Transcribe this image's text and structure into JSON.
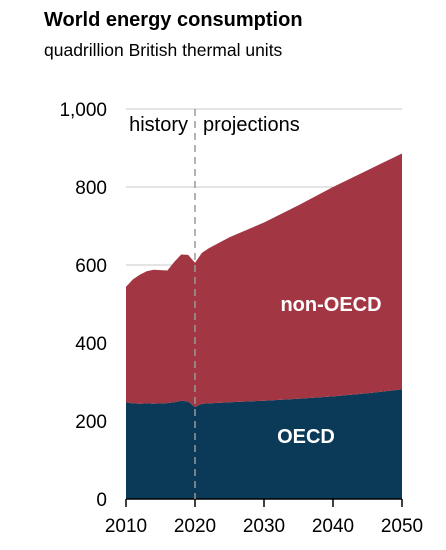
{
  "chart_data": {
    "type": "area",
    "title": "World energy consumption",
    "subtitle": "quadrillion British thermal units",
    "xlabel": "",
    "ylabel": "",
    "xlim": [
      2010,
      2050
    ],
    "ylim": [
      0,
      1000
    ],
    "x_ticks": [
      "2010",
      "2020",
      "2030",
      "2040",
      "2050"
    ],
    "y_ticks": [
      "0",
      "200",
      "400",
      "600",
      "800",
      "1,000"
    ],
    "grid": "horizontal",
    "divider_year": 2020,
    "annotations": {
      "history": "history",
      "projections": "projections"
    },
    "x": [
      2010,
      2011,
      2012,
      2013,
      2014,
      2015,
      2016,
      2017,
      2018,
      2019,
      2020,
      2021,
      2022,
      2025,
      2030,
      2035,
      2040,
      2045,
      2050
    ],
    "series": [
      {
        "name": "OECD",
        "color": "#0a3a58",
        "values": [
          248,
          245,
          244,
          245,
          244,
          245,
          246,
          248,
          252,
          250,
          236,
          244,
          245,
          248,
          252,
          257,
          263,
          271,
          281
        ]
      },
      {
        "name": "non-OECD",
        "color": "#a33643",
        "values": [
          296,
          318,
          331,
          339,
          344,
          342,
          340,
          360,
          375,
          376,
          370,
          387,
          398,
          423,
          457,
          496,
          537,
          572,
          605
        ]
      }
    ]
  }
}
